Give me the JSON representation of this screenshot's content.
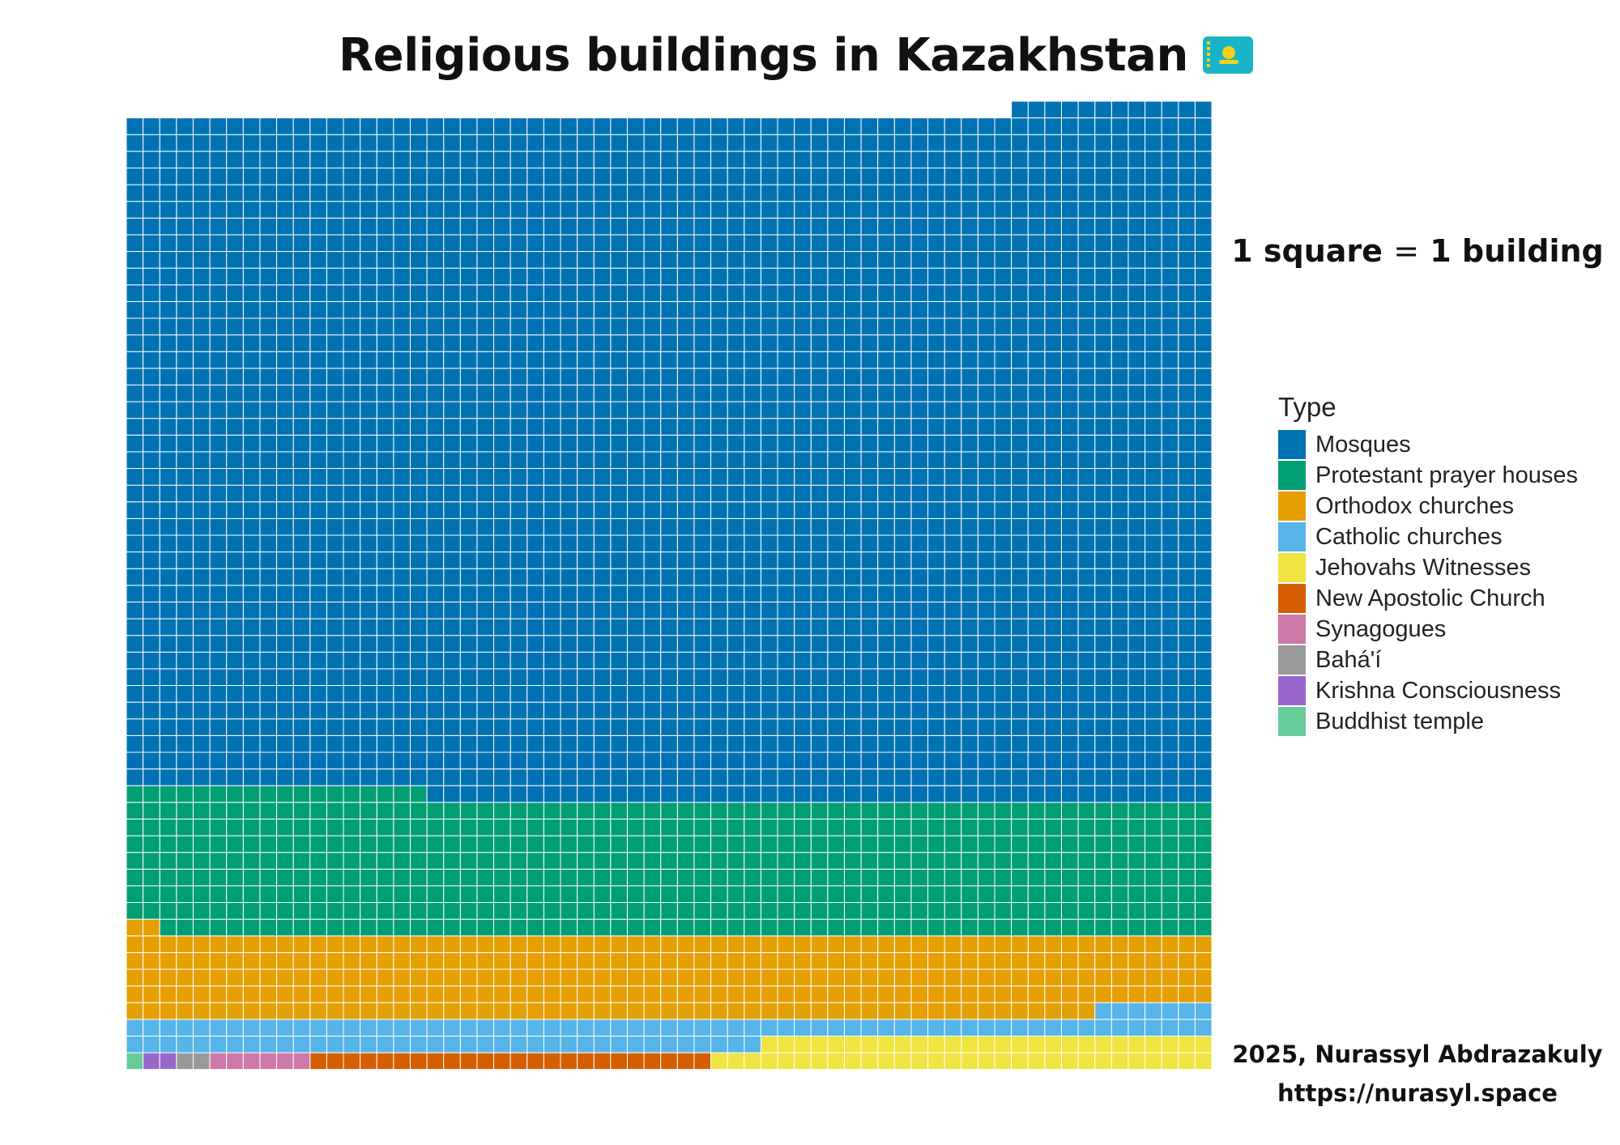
{
  "chart_data": {
    "type": "waffle",
    "title": "Religious buildings in Kazakhstan",
    "title_emoji": "Kazakhstan flag",
    "note": {
      "before": "1 square",
      "equals": "=",
      "after": "1 building"
    },
    "legend_title": "Type",
    "legend_position": "right",
    "columns": 65,
    "fill_order": "bottom-up, snaking rows (left-to-right then right-to-left)",
    "series": [
      {
        "name": "Mosques",
        "value": 2659,
        "color": "#0072B2"
      },
      {
        "name": "Protestant prayer houses",
        "value": 536,
        "color": "#009E73"
      },
      {
        "name": "Orthodox churches",
        "value": 320,
        "color": "#E69F00"
      },
      {
        "name": "Catholic churches",
        "value": 110,
        "color": "#56B4E9"
      },
      {
        "name": "Jehovahs Witnesses",
        "value": 57,
        "color": "#F0E442"
      },
      {
        "name": "New Apostolic Church",
        "value": 24,
        "color": "#D55E00"
      },
      {
        "name": "Synagogues",
        "value": 6,
        "color": "#CC79A7"
      },
      {
        "name": "Bahá'í",
        "value": 2,
        "color": "#999999"
      },
      {
        "name": "Krishna Consciousness",
        "value": 2,
        "color": "#9966CC"
      },
      {
        "name": "Buddhist temple",
        "value": 1,
        "color": "#66CC99"
      }
    ],
    "grid_line_color": "#ffffff"
  },
  "credit": {
    "line1": "2025, Nurassyl Abdrazakuly",
    "line2": "https://nurasyl.space"
  }
}
